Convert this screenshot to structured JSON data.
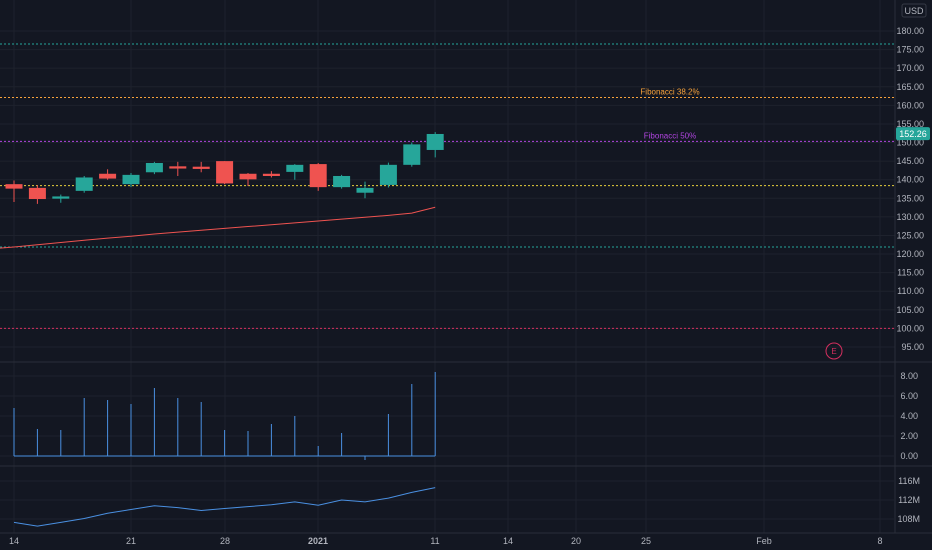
{
  "currency_button": "USD",
  "last_price_label": "152.26",
  "earnings_marker": "E",
  "colors": {
    "background": "#131722",
    "grid": "#1e222d",
    "up": "#26a69a",
    "down": "#ef5350",
    "ma": "#ef5350",
    "volume": "#2962ff",
    "obv": "#4a90e2",
    "axis_text": "#b2b5be",
    "price_tag_bg": "#26a69a"
  },
  "chart_data": {
    "type": "candlestick",
    "price_axis": {
      "ylim": [
        93,
        185
      ],
      "ticks": [
        "180.00",
        "175.00",
        "170.00",
        "165.00",
        "160.00",
        "155.00",
        "150.00",
        "145.00",
        "140.00",
        "135.00",
        "130.00",
        "125.00",
        "120.00",
        "115.00",
        "110.00",
        "105.00",
        "100.00",
        "95.00"
      ]
    },
    "x_axis": {
      "tick_labels": [
        "14",
        "21",
        "28",
        "2021",
        "11",
        "14",
        "20",
        "25",
        "Feb",
        "8"
      ]
    },
    "candles": [
      {
        "o": 138.8,
        "h": 139.8,
        "l": 134.0,
        "c": 137.6
      },
      {
        "o": 137.8,
        "h": 138.5,
        "l": 133.5,
        "c": 134.8
      },
      {
        "o": 134.9,
        "h": 136.0,
        "l": 133.8,
        "c": 135.5
      },
      {
        "o": 137.0,
        "h": 141.0,
        "l": 136.5,
        "c": 140.6
      },
      {
        "o": 141.6,
        "h": 142.8,
        "l": 140.0,
        "c": 140.3
      },
      {
        "o": 138.8,
        "h": 141.8,
        "l": 138.0,
        "c": 141.3
      },
      {
        "o": 142.0,
        "h": 144.8,
        "l": 141.5,
        "c": 144.5
      },
      {
        "o": 143.6,
        "h": 144.8,
        "l": 141.0,
        "c": 143.0
      },
      {
        "o": 143.5,
        "h": 144.8,
        "l": 142.0,
        "c": 142.9
      },
      {
        "o": 145.0,
        "h": 145.0,
        "l": 138.8,
        "c": 139.0
      },
      {
        "o": 141.6,
        "h": 141.8,
        "l": 138.3,
        "c": 140.1
      },
      {
        "o": 141.6,
        "h": 142.3,
        "l": 140.6,
        "c": 141.0
      },
      {
        "o": 142.1,
        "h": 144.2,
        "l": 140.0,
        "c": 144.0
      },
      {
        "o": 144.2,
        "h": 144.5,
        "l": 137.0,
        "c": 138.0
      },
      {
        "o": 138.0,
        "h": 141.3,
        "l": 137.6,
        "c": 141.0
      },
      {
        "o": 136.5,
        "h": 139.5,
        "l": 135.0,
        "c": 137.8
      },
      {
        "o": 138.6,
        "h": 144.6,
        "l": 137.9,
        "c": 144.0
      },
      {
        "o": 144.0,
        "h": 150.0,
        "l": 143.5,
        "c": 149.5
      },
      {
        "o": 148.0,
        "h": 152.8,
        "l": 146.0,
        "c": 152.3
      }
    ],
    "moving_average": [
      121.9,
      122.5,
      123.1,
      123.7,
      124.3,
      124.8,
      125.4,
      125.9,
      126.4,
      126.9,
      127.4,
      127.9,
      128.4,
      128.9,
      129.4,
      129.9,
      130.4,
      131.0,
      132.6
    ],
    "horizontal_levels": [
      {
        "price": 176.5,
        "color": "#26a69a",
        "label": ""
      },
      {
        "price": 162.1,
        "color": "#f7a23b",
        "label": "Fibonacci 38.2%"
      },
      {
        "price": 150.3,
        "color": "#b144e0",
        "label": "Fibonacci 50%"
      },
      {
        "price": 138.4,
        "color": "#e6cf3c",
        "label": ""
      },
      {
        "price": 121.9,
        "color": "#26a69a",
        "label": ""
      },
      {
        "price": 100.0,
        "color": "#d32f5f",
        "label": ""
      }
    ],
    "last_price": 152.26,
    "volume_pane": {
      "ylim": [
        -0.5,
        8.5
      ],
      "ticks": [
        "8.00",
        "6.00",
        "4.00",
        "2.00",
        "0.00"
      ],
      "values": [
        4.8,
        2.7,
        2.6,
        5.8,
        5.6,
        5.2,
        6.8,
        5.8,
        5.4,
        2.6,
        2.5,
        3.2,
        4.0,
        1.0,
        2.3,
        -0.4,
        4.2,
        7.2,
        8.4
      ]
    },
    "obv_pane": {
      "ylim": [
        105,
        118
      ],
      "ticks": [
        "116M",
        "112M",
        "108M"
      ],
      "values": [
        107.3,
        106.5,
        107.3,
        108.1,
        109.2,
        110.0,
        110.8,
        110.4,
        109.8,
        110.2,
        110.6,
        111.0,
        111.6,
        110.9,
        112.0,
        111.6,
        112.4,
        113.6,
        114.6
      ]
    }
  }
}
